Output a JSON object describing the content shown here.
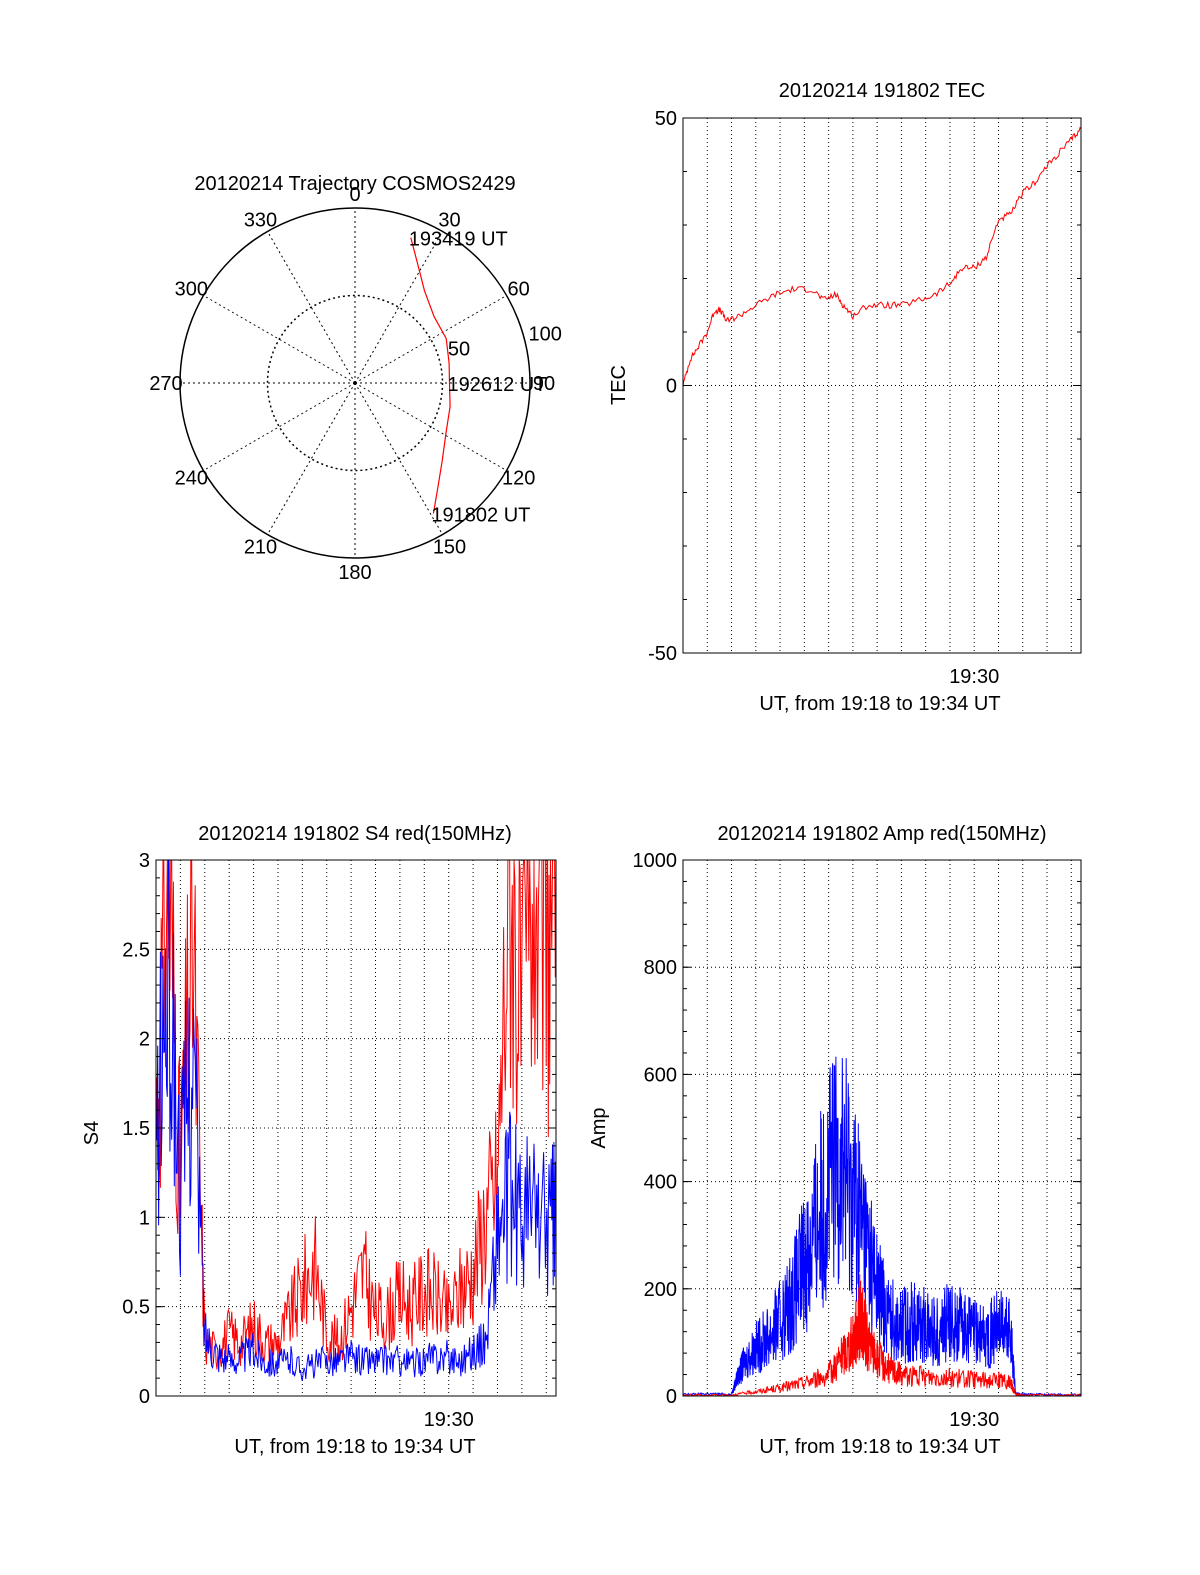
{
  "figure": {
    "colors": {
      "red": "#ff0000",
      "blue": "#0000ff",
      "axis": "#000000",
      "grid": "#000000"
    }
  },
  "chart_data": [
    {
      "type": "polar",
      "title": "20120214 Trajectory COSMOS2429",
      "angle_labels": [
        "0",
        "30",
        "60",
        "90",
        "120",
        "150",
        "180",
        "210",
        "240",
        "270",
        "300",
        "330"
      ],
      "angle_values": [
        0,
        30,
        60,
        90,
        120,
        150,
        180,
        210,
        240,
        270,
        300,
        330
      ],
      "radial_labels": [
        "50",
        "100"
      ],
      "radial_values": [
        50,
        100
      ],
      "rlim": [
        0,
        100
      ],
      "grid": true,
      "trajectory": [
        {
          "azimuth": 21,
          "zenith": 89
        },
        {
          "azimuth": 27,
          "zenith": 78
        },
        {
          "azimuth": 37,
          "zenith": 66
        },
        {
          "azimuth": 50,
          "zenith": 59
        },
        {
          "azimuth": 64,
          "zenith": 58
        },
        {
          "azimuth": 78,
          "zenith": 55
        },
        {
          "azimuth": 90,
          "zenith": 54
        },
        {
          "azimuth": 104,
          "zenith": 56
        },
        {
          "azimuth": 118,
          "zenith": 59
        },
        {
          "azimuth": 132,
          "zenith": 67
        },
        {
          "azimuth": 143,
          "zenith": 78
        },
        {
          "azimuth": 149,
          "zenith": 87
        }
      ],
      "annotations": [
        {
          "text": "193419 UT",
          "azimuth": 21,
          "zenith": 89
        },
        {
          "text": "192612 UT",
          "azimuth": 90,
          "zenith": 54
        },
        {
          "text": "191802 UT",
          "azimuth": 149,
          "zenith": 87
        }
      ]
    },
    {
      "type": "line",
      "title": "20120214 191802 TEC",
      "xlabel": "UT, from 19:18 to 19:34 UT",
      "ylabel": "TEC",
      "xlim": [
        0,
        16.4
      ],
      "ylim": [
        -50,
        50
      ],
      "yticks": [
        "-50",
        "0",
        "50"
      ],
      "ytick_values": [
        -50,
        0,
        50
      ],
      "xtick_labels": [
        "19:30"
      ],
      "xtick_values": [
        12
      ],
      "x_gridlines": [
        1,
        2,
        3,
        4,
        5,
        6,
        7,
        8,
        9,
        10,
        11,
        12,
        13,
        14,
        15,
        16
      ],
      "series": [
        {
          "color": "#ff0000",
          "x": [
            0,
            0.3,
            0.6,
            1.0,
            1.3,
            1.55,
            1.8,
            2.3,
            3.0,
            3.8,
            4.5,
            5.3,
            5.8,
            6.3,
            6.6,
            7.0,
            7.6,
            8.3,
            9.0,
            9.8,
            10.4,
            11.0,
            11.5,
            12.0,
            12.5,
            13.0,
            13.5,
            14.0,
            14.5,
            15.0,
            15.6,
            16.0,
            16.4
          ],
          "y": [
            0,
            5,
            7,
            10,
            14,
            14,
            12,
            13,
            15,
            17,
            18,
            18,
            16,
            17,
            15,
            13,
            15,
            15,
            15,
            16,
            17,
            19,
            22,
            22,
            24,
            31,
            32,
            36,
            38,
            41,
            44,
            46,
            48
          ]
        }
      ]
    },
    {
      "type": "line",
      "title": "20120214 191802 S4 red(150MHz)",
      "xlabel": "UT, from 19:18 to 19:34 UT",
      "ylabel": "S4",
      "xlim": [
        0,
        16.4
      ],
      "ylim": [
        0,
        3
      ],
      "yticks": [
        "0",
        "0.5",
        "1",
        "1.5",
        "2",
        "2.5",
        "3"
      ],
      "ytick_values": [
        0,
        0.5,
        1,
        1.5,
        2,
        2.5,
        3
      ],
      "xtick_labels": [
        "19:30"
      ],
      "xtick_values": [
        12
      ],
      "x_gridlines": [
        1,
        2,
        3,
        4,
        5,
        6,
        7,
        8,
        9,
        10,
        11,
        12,
        13,
        14,
        15,
        16
      ],
      "series": [
        {
          "color": "#ff0000",
          "x": [
            0,
            0.5,
            1.0,
            1.5,
            2.0,
            2.5,
            3.0,
            3.5,
            4.0,
            4.5,
            5.0,
            5.5,
            6.0,
            6.5,
            7.0,
            7.5,
            8.0,
            8.5,
            9.0,
            9.5,
            10.0,
            10.5,
            11.0,
            11.5,
            12.0,
            12.5,
            13.0,
            13.5,
            14.0,
            14.5,
            15.0,
            15.5,
            16.0,
            16.4
          ],
          "y": [
            1.5,
            3.0,
            1.2,
            2.6,
            0.3,
            0.25,
            0.35,
            0.3,
            0.4,
            0.3,
            0.3,
            0.45,
            0.6,
            0.75,
            0.35,
            0.3,
            0.5,
            0.7,
            0.45,
            0.45,
            0.55,
            0.5,
            0.6,
            0.55,
            0.45,
            0.6,
            0.7,
            1.0,
            1.2,
            3.0,
            2.0,
            3.0,
            2.5,
            3.0
          ]
        },
        {
          "color": "#0000ff",
          "x": [
            0,
            0.5,
            1.0,
            1.5,
            2.0,
            2.5,
            3.0,
            3.5,
            4.0,
            4.5,
            5.0,
            5.5,
            6.0,
            6.5,
            7.0,
            7.5,
            8.0,
            8.5,
            9.0,
            9.5,
            10.0,
            10.5,
            11.0,
            11.5,
            12.0,
            12.5,
            13.0,
            13.5,
            14.0,
            14.5,
            15.0,
            15.5,
            16.0,
            16.4
          ],
          "y": [
            1.3,
            2.5,
            1.2,
            2.0,
            0.35,
            0.25,
            0.2,
            0.22,
            0.25,
            0.2,
            0.18,
            0.2,
            0.15,
            0.18,
            0.2,
            0.2,
            0.22,
            0.2,
            0.2,
            0.2,
            0.2,
            0.18,
            0.2,
            0.22,
            0.22,
            0.2,
            0.25,
            0.3,
            0.9,
            1.1,
            1.0,
            1.05,
            0.95,
            1.0
          ]
        }
      ]
    },
    {
      "type": "line",
      "title": "20120214 191802 Amp red(150MHz)",
      "xlabel": "UT, from 19:18 to 19:34 UT",
      "ylabel": "Amp",
      "xlim": [
        0,
        16.4
      ],
      "ylim": [
        0,
        1000
      ],
      "yticks": [
        "0",
        "200",
        "400",
        "600",
        "800",
        "1000"
      ],
      "ytick_values": [
        0,
        200,
        400,
        600,
        800,
        1000
      ],
      "xtick_labels": [
        "19:30"
      ],
      "xtick_values": [
        12
      ],
      "x_gridlines": [
        1,
        2,
        3,
        4,
        5,
        6,
        7,
        8,
        9,
        10,
        11,
        12,
        13,
        14,
        15,
        16
      ],
      "series": [
        {
          "color": "#0000ff",
          "x": [
            0,
            1.0,
            2.0,
            2.2,
            2.5,
            3.0,
            3.5,
            4.0,
            4.5,
            5.0,
            5.5,
            6.0,
            6.5,
            7.0,
            7.5,
            8.0,
            8.5,
            9.0,
            9.5,
            10.0,
            10.5,
            11.0,
            11.5,
            12.0,
            12.5,
            13.0,
            13.5,
            13.7,
            14.0,
            15.0,
            16.4
          ],
          "y": [
            3,
            4,
            3,
            30,
            60,
            90,
            110,
            140,
            180,
            250,
            320,
            400,
            450,
            380,
            300,
            200,
            150,
            130,
            140,
            130,
            120,
            140,
            130,
            120,
            110,
            130,
            120,
            5,
            3,
            3,
            3
          ]
        },
        {
          "color": "#ff0000",
          "x": [
            0,
            2.0,
            3.0,
            4.0,
            5.0,
            6.0,
            6.5,
            7.0,
            7.3,
            7.6,
            8.0,
            8.5,
            9.0,
            10.0,
            11.0,
            12.0,
            13.0,
            13.5,
            13.7,
            14.0,
            16.4
          ],
          "y": [
            2,
            2,
            8,
            15,
            25,
            40,
            70,
            100,
            150,
            100,
            70,
            50,
            40,
            35,
            35,
            30,
            30,
            25,
            3,
            2,
            2
          ]
        }
      ]
    }
  ]
}
